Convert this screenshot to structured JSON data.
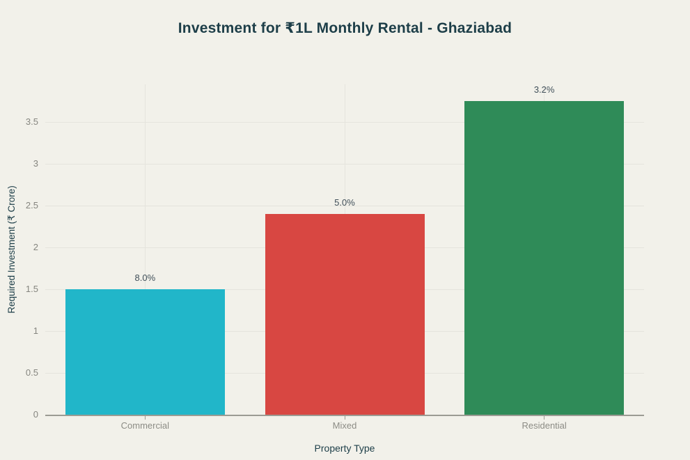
{
  "chart_data": {
    "type": "bar",
    "title": "Investment for ₹1L Monthly Rental - Ghaziabad",
    "xlabel": "Property Type",
    "ylabel": "Required Investment (₹ Crore)",
    "categories": [
      "Commercial",
      "Mixed",
      "Residential"
    ],
    "values": [
      1.5,
      2.4,
      3.75
    ],
    "bar_labels": [
      "8.0%",
      "5.0%",
      "3.2%"
    ],
    "bar_colors": [
      "#21b6c9",
      "#d84742",
      "#2f8b58"
    ],
    "yticks": [
      "0",
      "0.5",
      "1",
      "1.5",
      "2",
      "2.5",
      "3",
      "3.5"
    ],
    "ylim": [
      0,
      3.95
    ],
    "grid": true,
    "legend": "none",
    "colors": {
      "background": "#f2f1ea",
      "title": "#1d3e48",
      "axis_title": "#1d3e48",
      "tick_label": "#85857f",
      "category_label": "#8c8c85",
      "bar_value_label": "#41505a",
      "gridline": "#e5e4dd",
      "axis_line": "#9b9b93",
      "tick_mark": "#9b9b93"
    }
  }
}
